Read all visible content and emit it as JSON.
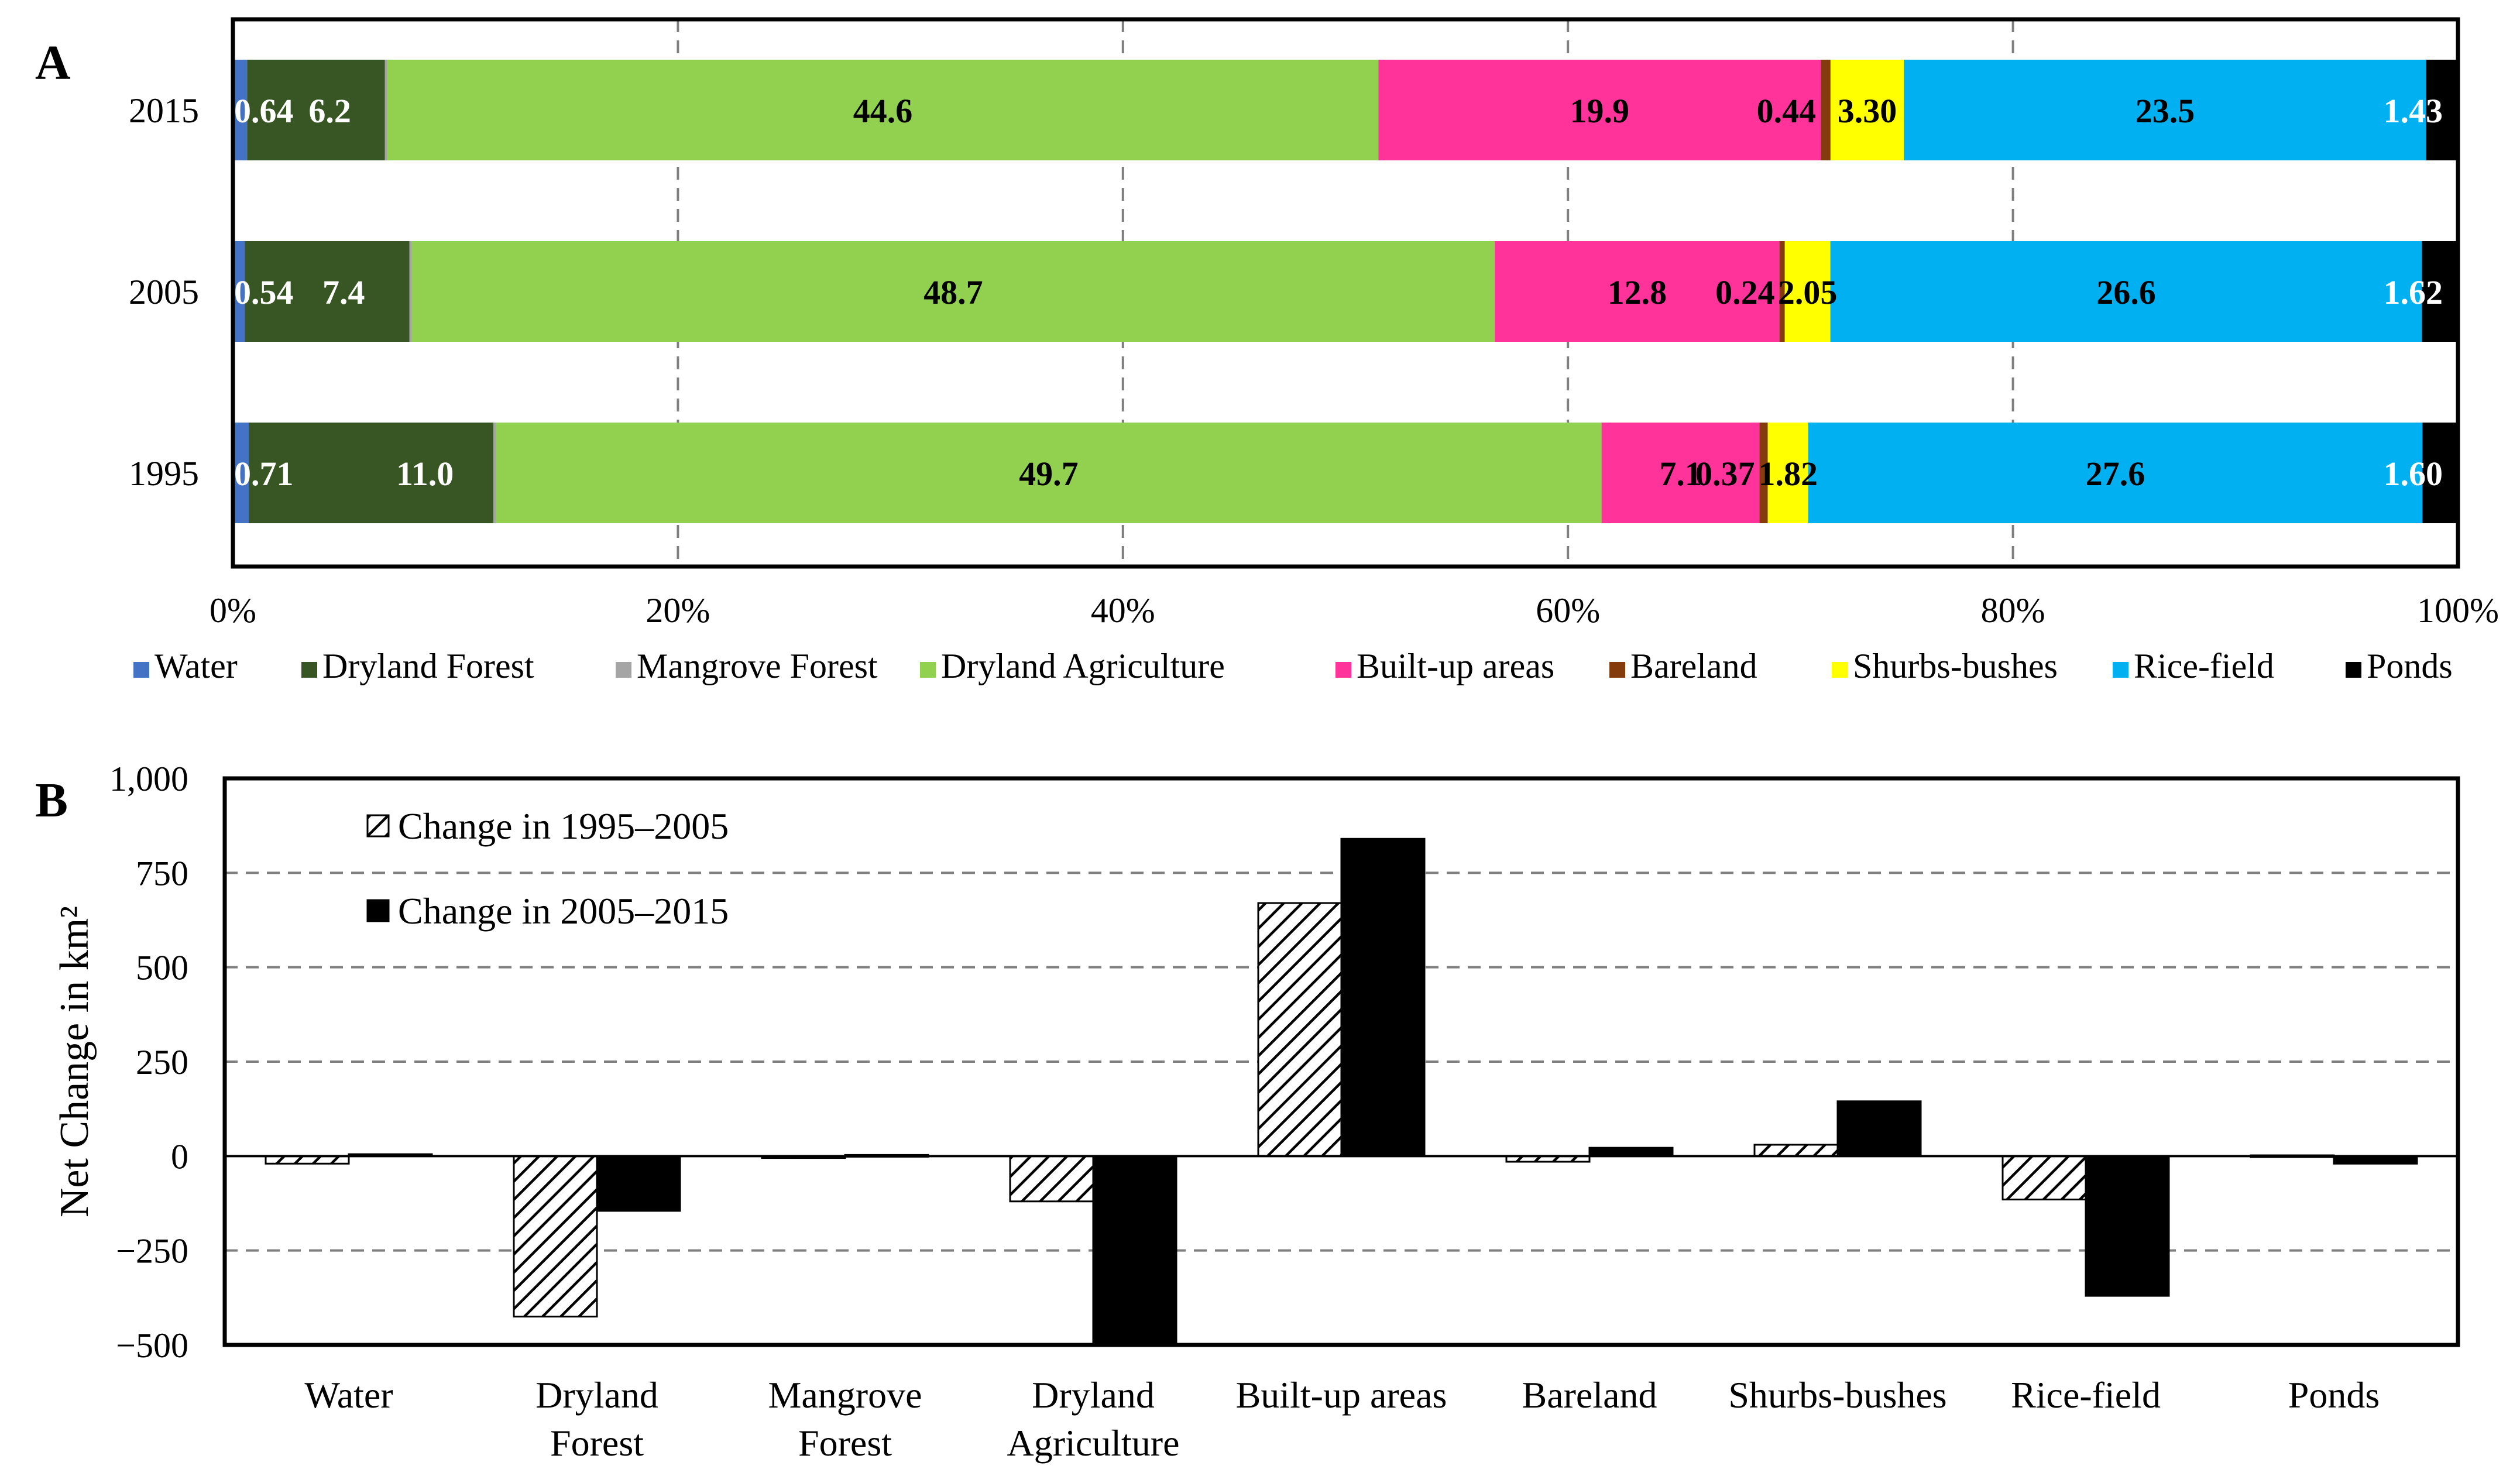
{
  "panel_a_label": "A",
  "panel_b_label": "B",
  "chart_data": [
    {
      "type": "bar",
      "orientation": "horizontal",
      "stacked": "percent",
      "categories": [
        "2015",
        "2005",
        "1995"
      ],
      "xlim": [
        0,
        100
      ],
      "xticks": [
        "0%",
        "20%",
        "40%",
        "60%",
        "80%",
        "100%"
      ],
      "grid": "vertical dashed",
      "legend_position": "bottom",
      "series": [
        {
          "name": "Water",
          "color": "#4472C4",
          "values": [
            0.64,
            0.54,
            0.71
          ],
          "labels": [
            "0.64",
            "0.54",
            "0.71"
          ],
          "label_color": "#ffffff"
        },
        {
          "name": "Dryland Forest",
          "color": "#375623",
          "values": [
            6.2,
            7.4,
            11.0
          ],
          "labels": [
            "6.2",
            "7.4",
            "11.0"
          ],
          "label_color": "#ffffff"
        },
        {
          "name": "Mangrove Forest",
          "color": "#A5A5A5",
          "values": [
            0.1,
            0.1,
            0.1
          ],
          "labels": [
            "",
            "",
            ""
          ],
          "label_color": "#000000"
        },
        {
          "name": "Dryland Agriculture",
          "color": "#92D050",
          "values": [
            44.6,
            48.7,
            49.7
          ],
          "labels": [
            "44.6",
            "48.7",
            "49.7"
          ],
          "label_color": "#000000"
        },
        {
          "name": "Built-up areas",
          "color": "#FF3399",
          "values": [
            19.9,
            12.8,
            7.1
          ],
          "labels": [
            "19.9",
            "12.8",
            "7.1"
          ],
          "label_color": "#000000"
        },
        {
          "name": "Bareland",
          "color": "#843C0C",
          "values": [
            0.44,
            0.24,
            0.37
          ],
          "labels": [
            "0.44",
            "0.24",
            "0.37"
          ],
          "label_color": "#000000"
        },
        {
          "name": "Shurbs-bushes",
          "color": "#FFFF00",
          "values": [
            3.3,
            2.05,
            1.82
          ],
          "labels": [
            "3.30",
            "2.05",
            "1.82"
          ],
          "label_color": "#000000"
        },
        {
          "name": "Rice-field",
          "color": "#00B0F0",
          "values": [
            23.5,
            26.6,
            27.6
          ],
          "labels": [
            "23.5",
            "26.6",
            "27.6"
          ],
          "label_color": "#000000"
        },
        {
          "name": "Ponds",
          "color": "#000000",
          "values": [
            1.43,
            1.62,
            1.6
          ],
          "labels": [
            "1.43",
            "1.62",
            "1.60"
          ],
          "label_color": "#ffffff"
        }
      ]
    },
    {
      "type": "bar",
      "categories": [
        "Water",
        "Dryland Forest",
        "Mangrove Forest",
        "Dryland Agriculture",
        "Built-up areas",
        "Bareland",
        "Shurbs-bushes",
        "Rice-field",
        "Ponds"
      ],
      "ylabel": "Net Change in km²",
      "ylim": [
        -500,
        1000
      ],
      "yticks": [
        "−500",
        "−250",
        "0",
        "250",
        "500",
        "750",
        "1,000"
      ],
      "grid": "horizontal dashed",
      "legend_position": "top-left",
      "series": [
        {
          "name": "Change in 1995–2005",
          "pattern": "hatched",
          "values": [
            -20,
            -425,
            -5,
            -120,
            670,
            -15,
            30,
            -115,
            2
          ]
        },
        {
          "name": "Change in 2005–2015",
          "pattern": "solid",
          "color": "#000000",
          "values": [
            5,
            -145,
            3,
            -500,
            840,
            22,
            145,
            -370,
            -20
          ]
        }
      ]
    }
  ]
}
